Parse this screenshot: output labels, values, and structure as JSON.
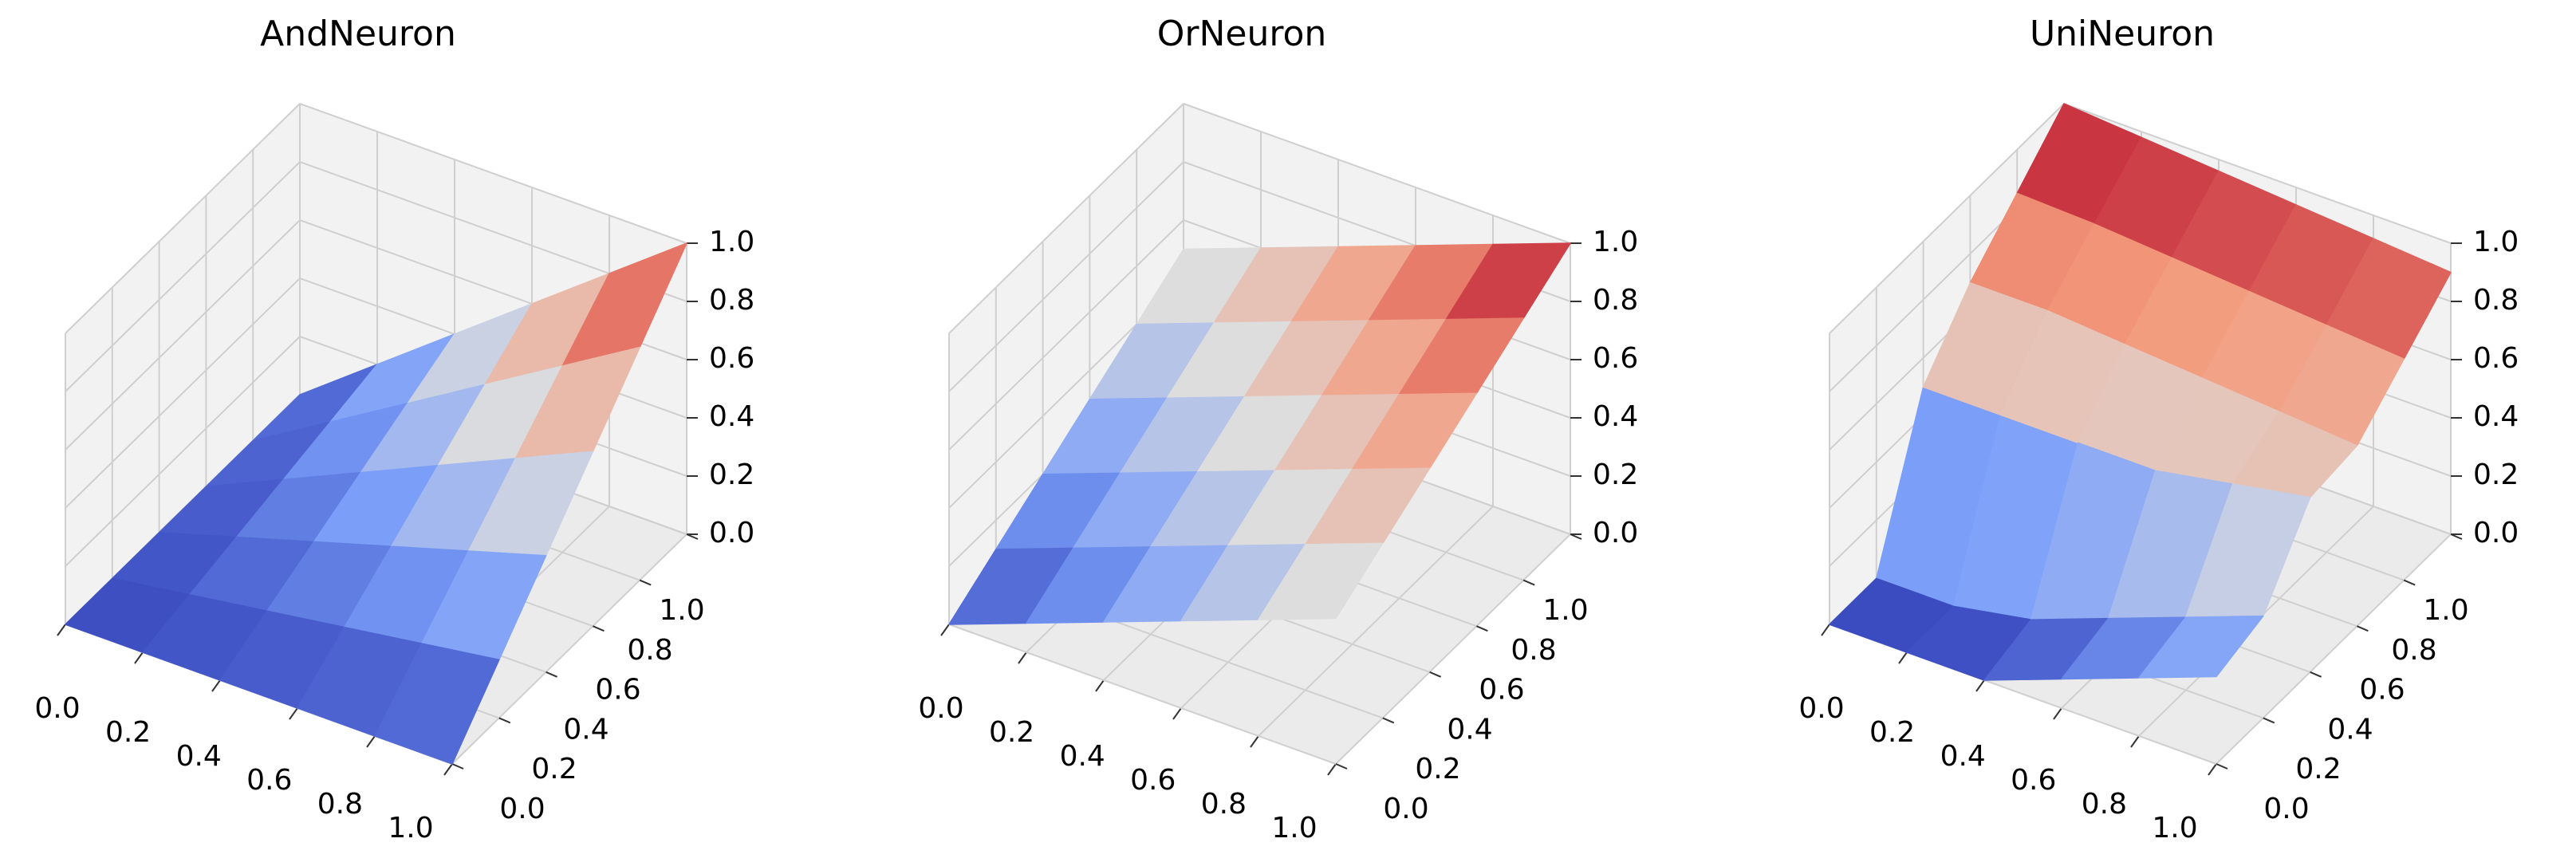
{
  "chart_data": [
    {
      "type": "surface",
      "title": "AndNeuron",
      "x": [
        0,
        0.2,
        0.4,
        0.6,
        0.8,
        1
      ],
      "y": [
        0,
        0.2,
        0.4,
        0.6,
        0.8,
        1
      ],
      "z": [
        [
          0,
          0,
          0,
          0,
          0,
          0
        ],
        [
          0,
          0.04,
          0.08,
          0.12,
          0.16,
          0.2
        ],
        [
          0,
          0.08,
          0.16,
          0.24,
          0.32,
          0.4
        ],
        [
          0,
          0.12,
          0.24,
          0.36,
          0.48,
          0.6
        ],
        [
          0,
          0.16,
          0.32,
          0.48,
          0.64,
          0.8
        ],
        [
          0,
          0.2,
          0.4,
          0.6,
          0.8,
          1
        ]
      ],
      "xlim": [
        0,
        1
      ],
      "ylim": [
        0,
        1
      ],
      "zlim": [
        0,
        1
      ],
      "xticks": [
        {
          "value": 0,
          "label": "0.0"
        },
        0.2,
        0.4,
        0.6,
        0.8,
        {
          "value": 1,
          "label": "1.0"
        }
      ],
      "yticks": [
        {
          "value": 0,
          "label": "0.0"
        },
        0.2,
        0.4,
        0.6,
        0.8,
        {
          "value": 1,
          "label": "1.0"
        }
      ],
      "zticks": [
        {
          "value": 0,
          "label": "0.0"
        },
        0.2,
        0.4,
        0.6,
        0.8,
        {
          "value": 1,
          "label": "1.0"
        }
      ],
      "colormap": [
        "#3b4cc0",
        "#7b9ff9",
        "#dddddd",
        "#f49a7b",
        "#b40426"
      ]
    },
    {
      "type": "surface",
      "title": "OrNeuron",
      "x": [
        0,
        0.2,
        0.4,
        0.6,
        0.8,
        1
      ],
      "y": [
        0,
        0.2,
        0.4,
        0.6,
        0.8,
        1
      ],
      "z": [
        [
          0,
          0.1,
          0.2,
          0.3,
          0.4,
          0.5
        ],
        [
          0.1,
          0.2,
          0.3,
          0.4,
          0.5,
          0.6
        ],
        [
          0.2,
          0.3,
          0.4,
          0.5,
          0.6,
          0.7
        ],
        [
          0.3,
          0.4,
          0.5,
          0.6,
          0.7,
          0.8
        ],
        [
          0.4,
          0.5,
          0.6,
          0.7,
          0.8,
          0.9
        ],
        [
          0.5,
          0.6,
          0.7,
          0.8,
          0.9,
          1
        ]
      ],
      "xlim": [
        0,
        1
      ],
      "ylim": [
        0,
        1
      ],
      "zlim": [
        0,
        1
      ],
      "xticks": [
        {
          "value": 0,
          "label": "0.0"
        },
        0.2,
        0.4,
        0.6,
        0.8,
        {
          "value": 1,
          "label": "1.0"
        }
      ],
      "yticks": [
        {
          "value": 0,
          "label": "0.0"
        },
        0.2,
        0.4,
        0.6,
        0.8,
        {
          "value": 1,
          "label": "1.0"
        }
      ],
      "zticks": [
        {
          "value": 0,
          "label": "0.0"
        },
        0.2,
        0.4,
        0.6,
        0.8,
        {
          "value": 1,
          "label": "1.0"
        }
      ],
      "colormap": [
        "#3b4cc0",
        "#7b9ff9",
        "#dddddd",
        "#f49a7b",
        "#b40426"
      ]
    },
    {
      "type": "surface",
      "title": "UniNeuron",
      "x": [
        0,
        0.2,
        0.4,
        0.6,
        0.8,
        1
      ],
      "y": [
        0,
        0.2,
        0.4,
        0.6,
        0.8,
        1
      ],
      "z": [
        [
          0,
          0,
          0,
          0.1,
          0.2,
          0.3
        ],
        [
          0,
          0,
          0.05,
          0.15,
          0.25,
          0.35
        ],
        [
          0.5,
          0.5,
          0.5,
          0.5,
          0.55,
          0.6
        ],
        [
          0.7,
          0.7,
          0.68,
          0.66,
          0.64,
          0.62
        ],
        [
          0.85,
          0.84,
          0.82,
          0.8,
          0.78,
          0.76
        ],
        [
          1,
          0.98,
          0.96,
          0.94,
          0.92,
          0.9
        ]
      ],
      "xlim": [
        0,
        1
      ],
      "ylim": [
        0,
        1
      ],
      "zlim": [
        0,
        1
      ],
      "xticks": [
        {
          "value": 0,
          "label": "0.0"
        },
        0.2,
        0.4,
        0.6,
        0.8,
        {
          "value": 1,
          "label": "1.0"
        }
      ],
      "yticks": [
        {
          "value": 0,
          "label": "0.0"
        },
        0.2,
        0.4,
        0.6,
        0.8,
        {
          "value": 1,
          "label": "1.0"
        }
      ],
      "zticks": [
        {
          "value": 0,
          "label": "0.0"
        },
        0.2,
        0.4,
        0.6,
        0.8,
        {
          "value": 1,
          "label": "1.0"
        }
      ],
      "colormap": [
        "#3b4cc0",
        "#7b9ff9",
        "#dddddd",
        "#f49a7b",
        "#b40426"
      ]
    }
  ]
}
